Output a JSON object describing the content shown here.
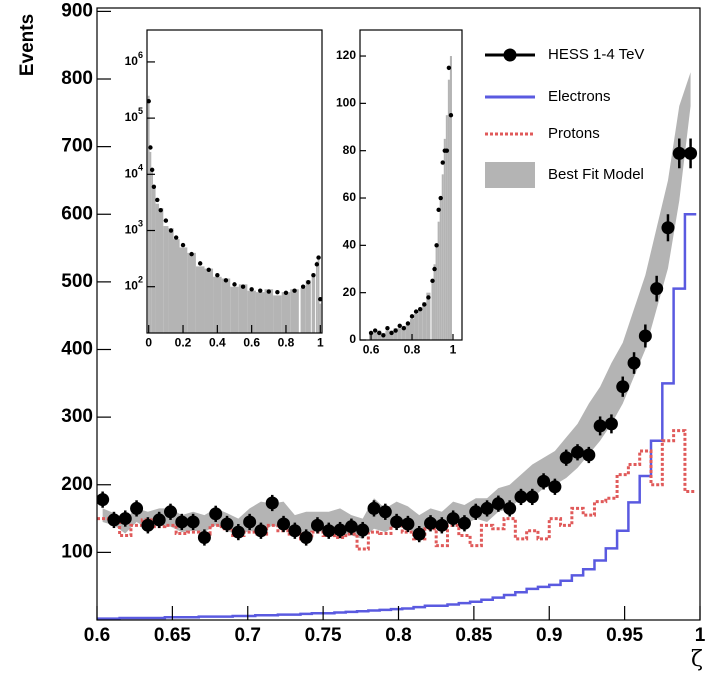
{
  "chart_data": [
    {
      "type": "step",
      "x_label": "ζ",
      "y_label": "Events",
      "xlim": [
        0.6,
        1.0
      ],
      "ylim": [
        0,
        905
      ],
      "xticks": [
        0.6,
        0.65,
        0.7,
        0.75,
        0.8,
        0.85,
        0.9,
        0.95,
        1
      ],
      "yticks": [
        100,
        200,
        300,
        400,
        500,
        600,
        700,
        800,
        900
      ],
      "legend": "upper right",
      "x": [
        0.60375,
        0.61125,
        0.61875,
        0.62625,
        0.63375,
        0.64125,
        0.64875,
        0.65625,
        0.66375,
        0.67125,
        0.67875,
        0.68625,
        0.69375,
        0.70125,
        0.70875,
        0.71625,
        0.72375,
        0.73125,
        0.73875,
        0.74625,
        0.75375,
        0.76125,
        0.76875,
        0.77625,
        0.78375,
        0.79125,
        0.79875,
        0.80625,
        0.81375,
        0.82125,
        0.82875,
        0.83625,
        0.84375,
        0.85125,
        0.85875,
        0.86625,
        0.87375,
        0.88125,
        0.88875,
        0.89625,
        0.90375,
        0.91125,
        0.91875,
        0.92625,
        0.93375,
        0.94125,
        0.94875,
        0.95625,
        0.96375,
        0.97125,
        0.97875,
        0.98625,
        0.99375
      ],
      "series": [
        {
          "name": "HESS 1-4 TeV",
          "color": "#000000",
          "style": "points",
          "values": [
            178,
            148,
            150,
            165,
            140,
            148,
            160,
            145,
            145,
            122,
            157,
            142,
            130,
            145,
            132,
            173,
            142,
            132,
            122,
            140,
            132,
            133,
            138,
            133,
            165,
            160,
            145,
            142,
            127,
            143,
            140,
            150,
            143,
            160,
            165,
            172,
            165,
            182,
            182,
            205,
            197,
            240,
            248,
            244,
            287,
            290,
            345,
            380,
            420,
            490,
            580,
            690,
            690
          ],
          "errors": [
            12,
            12,
            12,
            12,
            12,
            12,
            12,
            12,
            12,
            12,
            12,
            12,
            12,
            12,
            12,
            12,
            12,
            12,
            12,
            12,
            12,
            12,
            12,
            12,
            12,
            12,
            12,
            12,
            12,
            12,
            12,
            12,
            12,
            12,
            12,
            12,
            12,
            12,
            12,
            12,
            12,
            12,
            12,
            12,
            14,
            14,
            15,
            16,
            17,
            19,
            20,
            22,
            22
          ]
        },
        {
          "name": "Electrons",
          "color": "#5a5ae0",
          "style": "step",
          "values": [
            2,
            2,
            3,
            3,
            3,
            3,
            4,
            4,
            4,
            5,
            5,
            5,
            6,
            6,
            7,
            7,
            8,
            8,
            9,
            10,
            10,
            11,
            12,
            13,
            14,
            15,
            16,
            17,
            19,
            21,
            21,
            23,
            25,
            27,
            30,
            33,
            37,
            41,
            46,
            49,
            52,
            58,
            66,
            75,
            88,
            106,
            132,
            174,
            213,
            265,
            350,
            490,
            600
          ]
        },
        {
          "name": "Protons",
          "color": "#e05a5a",
          "style": "dashed-step",
          "values": [
            150,
            145,
            125,
            140,
            148,
            138,
            140,
            128,
            130,
            127,
            140,
            135,
            125,
            130,
            127,
            140,
            132,
            127,
            120,
            130,
            125,
            122,
            127,
            105,
            130,
            128,
            140,
            130,
            120,
            135,
            110,
            140,
            125,
            110,
            140,
            135,
            150,
            120,
            132,
            120,
            150,
            140,
            165,
            155,
            175,
            180,
            215,
            230,
            250,
            200,
            265,
            280,
            190
          ]
        },
        {
          "name": "Best Fit Model",
          "color": "#b4b4b4",
          "style": "band",
          "low": [
            145,
            140,
            128,
            145,
            135,
            140,
            138,
            130,
            132,
            130,
            140,
            132,
            125,
            132,
            128,
            140,
            135,
            130,
            128,
            132,
            128,
            130,
            125,
            120,
            135,
            130,
            140,
            135,
            125,
            140,
            130,
            150,
            140,
            150,
            145,
            160,
            165,
            180,
            180,
            195,
            200,
            210,
            225,
            245,
            265,
            290,
            320,
            360,
            400,
            460,
            520,
            620,
            760
          ],
          "high": [
            165,
            158,
            150,
            165,
            160,
            165,
            165,
            155,
            160,
            155,
            165,
            158,
            150,
            165,
            175,
            172,
            175,
            155,
            160,
            160,
            160,
            165,
            155,
            150,
            180,
            165,
            175,
            168,
            155,
            165,
            160,
            175,
            170,
            180,
            180,
            195,
            200,
            215,
            230,
            240,
            250,
            270,
            290,
            320,
            345,
            380,
            410,
            460,
            510,
            580,
            650,
            760,
            810
          ]
        }
      ]
    },
    {
      "type": "scatter",
      "log_y": true,
      "xlim": [
        -0.01,
        1.01
      ],
      "ylim": [
        15,
        3700000
      ],
      "xticks": [
        0,
        0.2,
        0.4,
        0.6,
        0.8,
        1
      ],
      "yticks": [
        {
          "value": 100,
          "label": "10^2"
        },
        {
          "value": 1000,
          "label": "10^3"
        },
        {
          "value": 10000,
          "label": "10^4"
        },
        {
          "value": 100000,
          "label": "10^5"
        },
        {
          "value": 1000000,
          "label": "10^6"
        }
      ],
      "color": "#000000",
      "model_color": "#b4b4b4",
      "x": [
        0,
        0.01,
        0.02,
        0.03,
        0.05,
        0.07,
        0.1,
        0.13,
        0.16,
        0.2,
        0.25,
        0.3,
        0.35,
        0.4,
        0.45,
        0.5,
        0.55,
        0.6,
        0.65,
        0.7,
        0.75,
        0.8,
        0.85,
        0.9,
        0.93,
        0.96,
        0.98,
        0.99,
        1.0
      ],
      "values": [
        200000,
        30000,
        12000,
        6000,
        3500,
        2300,
        1500,
        1000,
        750,
        550,
        380,
        260,
        200,
        160,
        130,
        110,
        100,
        90,
        85,
        82,
        80,
        78,
        85,
        100,
        120,
        160,
        250,
        330,
        60
      ],
      "model_values": [
        250000,
        25000,
        11000,
        6500,
        3000,
        2500,
        1200,
        1100,
        700,
        500,
        400,
        230,
        210,
        150,
        140,
        100,
        110,
        85,
        80,
        90,
        70,
        80,
        90,
        95,
        130,
        150,
        280,
        300,
        50
      ]
    },
    {
      "type": "scatter",
      "xlim": [
        0.546,
        1.044
      ],
      "ylim": [
        0,
        131
      ],
      "xticks": [
        0.6,
        0.8,
        1
      ],
      "yticks": [
        0,
        20,
        40,
        60,
        80,
        100,
        120
      ],
      "color": "#000000",
      "model_color": "#b4b4b4",
      "x": [
        0.6,
        0.62,
        0.64,
        0.66,
        0.68,
        0.7,
        0.72,
        0.74,
        0.76,
        0.78,
        0.8,
        0.82,
        0.84,
        0.86,
        0.88,
        0.9,
        0.91,
        0.92,
        0.93,
        0.94,
        0.95,
        0.96,
        0.97,
        0.98,
        0.99
      ],
      "values": [
        3,
        4,
        3,
        2,
        5,
        3,
        4,
        6,
        5,
        7,
        10,
        12,
        13,
        15,
        18,
        25,
        30,
        40,
        55,
        60,
        75,
        80,
        80,
        115,
        95
      ],
      "model_values": [
        3,
        3,
        4,
        3,
        4,
        4,
        5,
        5,
        6,
        7,
        9,
        11,
        13,
        16,
        20,
        25,
        32,
        40,
        50,
        60,
        70,
        85,
        95,
        110,
        120
      ]
    }
  ]
}
